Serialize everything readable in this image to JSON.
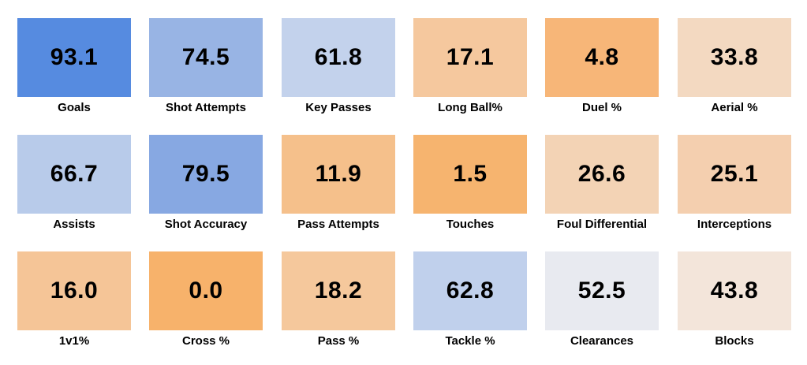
{
  "chart_data": {
    "type": "heatmap",
    "colors": {
      "high": "#568be0",
      "mid": "#e8eaf0",
      "low": "#f7b46e"
    },
    "cells": [
      {
        "label": "Goals",
        "value": "93.1",
        "color": "#568be0"
      },
      {
        "label": "Shot Attempts",
        "value": "74.5",
        "color": "#98b4e4"
      },
      {
        "label": "Key Passes",
        "value": "61.8",
        "color": "#c3d2ec"
      },
      {
        "label": "Long Ball%",
        "value": "17.1",
        "color": "#f5c89e"
      },
      {
        "label": "Duel %",
        "value": "4.8",
        "color": "#f7b678"
      },
      {
        "label": "Aerial %",
        "value": "33.8",
        "color": "#f3d9c1"
      },
      {
        "label": "Assists",
        "value": "66.7",
        "color": "#b8cbea"
      },
      {
        "label": "Shot Accuracy",
        "value": "79.5",
        "color": "#87a8e2"
      },
      {
        "label": "Pass Attempts",
        "value": "11.9",
        "color": "#f5c08b"
      },
      {
        "label": "Touches",
        "value": "1.5",
        "color": "#f6b46f"
      },
      {
        "label": "Foul Differential",
        "value": "26.6",
        "color": "#f3d3b5"
      },
      {
        "label": "Interceptions",
        "value": "25.1",
        "color": "#f4cfaf"
      },
      {
        "label": "1v1%",
        "value": "16.0",
        "color": "#f5c597"
      },
      {
        "label": "Cross %",
        "value": "0.0",
        "color": "#f7b26b"
      },
      {
        "label": "Pass %",
        "value": "18.2",
        "color": "#f5c89c"
      },
      {
        "label": "Tackle %",
        "value": "62.8",
        "color": "#c0d0ec"
      },
      {
        "label": "Clearances",
        "value": "52.5",
        "color": "#e8eaf0"
      },
      {
        "label": "Blocks",
        "value": "43.8",
        "color": "#f3e5da"
      }
    ]
  }
}
